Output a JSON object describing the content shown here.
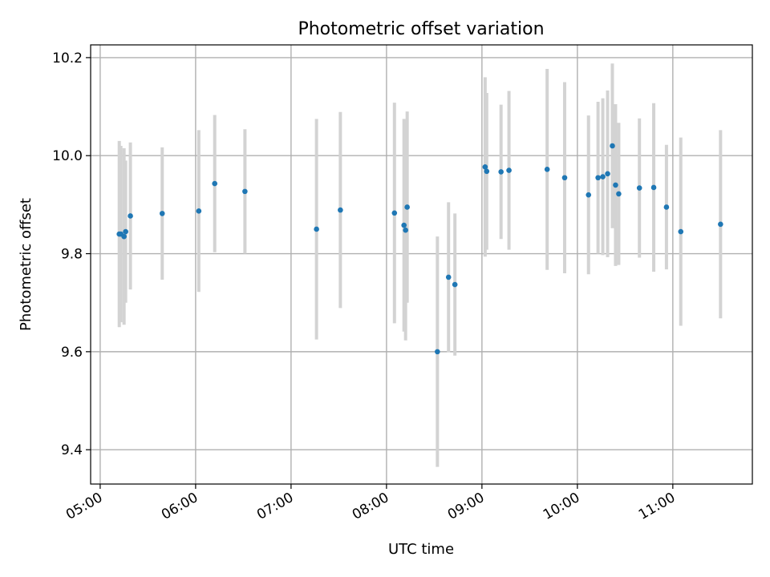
{
  "chart_data": {
    "type": "scatter",
    "title": "Photometric offset variation",
    "xlabel": "UTC time",
    "ylabel": "Photometric offset",
    "x_format": "HH:MM",
    "xlim": [
      "04:54",
      "11:50"
    ],
    "ylim": [
      9.33,
      10.226
    ],
    "x_ticks": [
      "05:00",
      "06:00",
      "07:00",
      "08:00",
      "09:00",
      "10:00",
      "11:00"
    ],
    "y_ticks": [
      9.4,
      9.6,
      9.8,
      10.0,
      10.2
    ],
    "y_tick_labels": [
      "9.4",
      "9.6",
      "9.8",
      "10.0",
      "10.2"
    ],
    "grid": true,
    "series": [
      {
        "marker_color": "#1f77b4",
        "errorbar_color": "#d3d3d3",
        "points": [
          {
            "x": "05:12",
            "y": 9.84,
            "err": 0.19
          },
          {
            "x": "05:13",
            "y": 9.84,
            "err": 0.18
          },
          {
            "x": "05:15",
            "y": 9.835,
            "err": 0.18
          },
          {
            "x": "05:16",
            "y": 9.845,
            "err": 0.145
          },
          {
            "x": "05:19",
            "y": 9.877,
            "err": 0.15
          },
          {
            "x": "05:39",
            "y": 9.882,
            "err": 0.135
          },
          {
            "x": "06:02",
            "y": 9.887,
            "err": 0.165
          },
          {
            "x": "06:12",
            "y": 9.943,
            "err": 0.14
          },
          {
            "x": "06:31",
            "y": 9.927,
            "err": 0.127
          },
          {
            "x": "07:16",
            "y": 9.85,
            "err": 0.225
          },
          {
            "x": "07:31",
            "y": 9.889,
            "err": 0.2
          },
          {
            "x": "08:05",
            "y": 9.883,
            "err": 0.225
          },
          {
            "x": "08:11",
            "y": 9.858,
            "err": 0.217
          },
          {
            "x": "08:12",
            "y": 9.848,
            "err": 0.225
          },
          {
            "x": "08:13",
            "y": 9.895,
            "err": 0.195
          },
          {
            "x": "08:32",
            "y": 9.6,
            "err": 0.235
          },
          {
            "x": "08:39",
            "y": 9.752,
            "err": 0.153
          },
          {
            "x": "08:43",
            "y": 9.737,
            "err": 0.145
          },
          {
            "x": "09:02",
            "y": 9.977,
            "err": 0.183
          },
          {
            "x": "09:03",
            "y": 9.968,
            "err": 0.16
          },
          {
            "x": "09:12",
            "y": 9.967,
            "err": 0.137
          },
          {
            "x": "09:17",
            "y": 9.97,
            "err": 0.162
          },
          {
            "x": "09:41",
            "y": 9.972,
            "err": 0.205
          },
          {
            "x": "09:52",
            "y": 9.955,
            "err": 0.195
          },
          {
            "x": "10:07",
            "y": 9.92,
            "err": 0.162
          },
          {
            "x": "10:13",
            "y": 9.955,
            "err": 0.155
          },
          {
            "x": "10:16",
            "y": 9.957,
            "err": 0.16
          },
          {
            "x": "10:19",
            "y": 9.963,
            "err": 0.17
          },
          {
            "x": "10:22",
            "y": 10.02,
            "err": 0.168
          },
          {
            "x": "10:24",
            "y": 9.94,
            "err": 0.165
          },
          {
            "x": "10:26",
            "y": 9.922,
            "err": 0.145
          },
          {
            "x": "10:39",
            "y": 9.934,
            "err": 0.142
          },
          {
            "x": "10:48",
            "y": 9.935,
            "err": 0.172
          },
          {
            "x": "10:56",
            "y": 9.895,
            "err": 0.127
          },
          {
            "x": "11:05",
            "y": 9.845,
            "err": 0.192
          },
          {
            "x": "11:30",
            "y": 9.86,
            "err": 0.192
          }
        ]
      }
    ]
  }
}
